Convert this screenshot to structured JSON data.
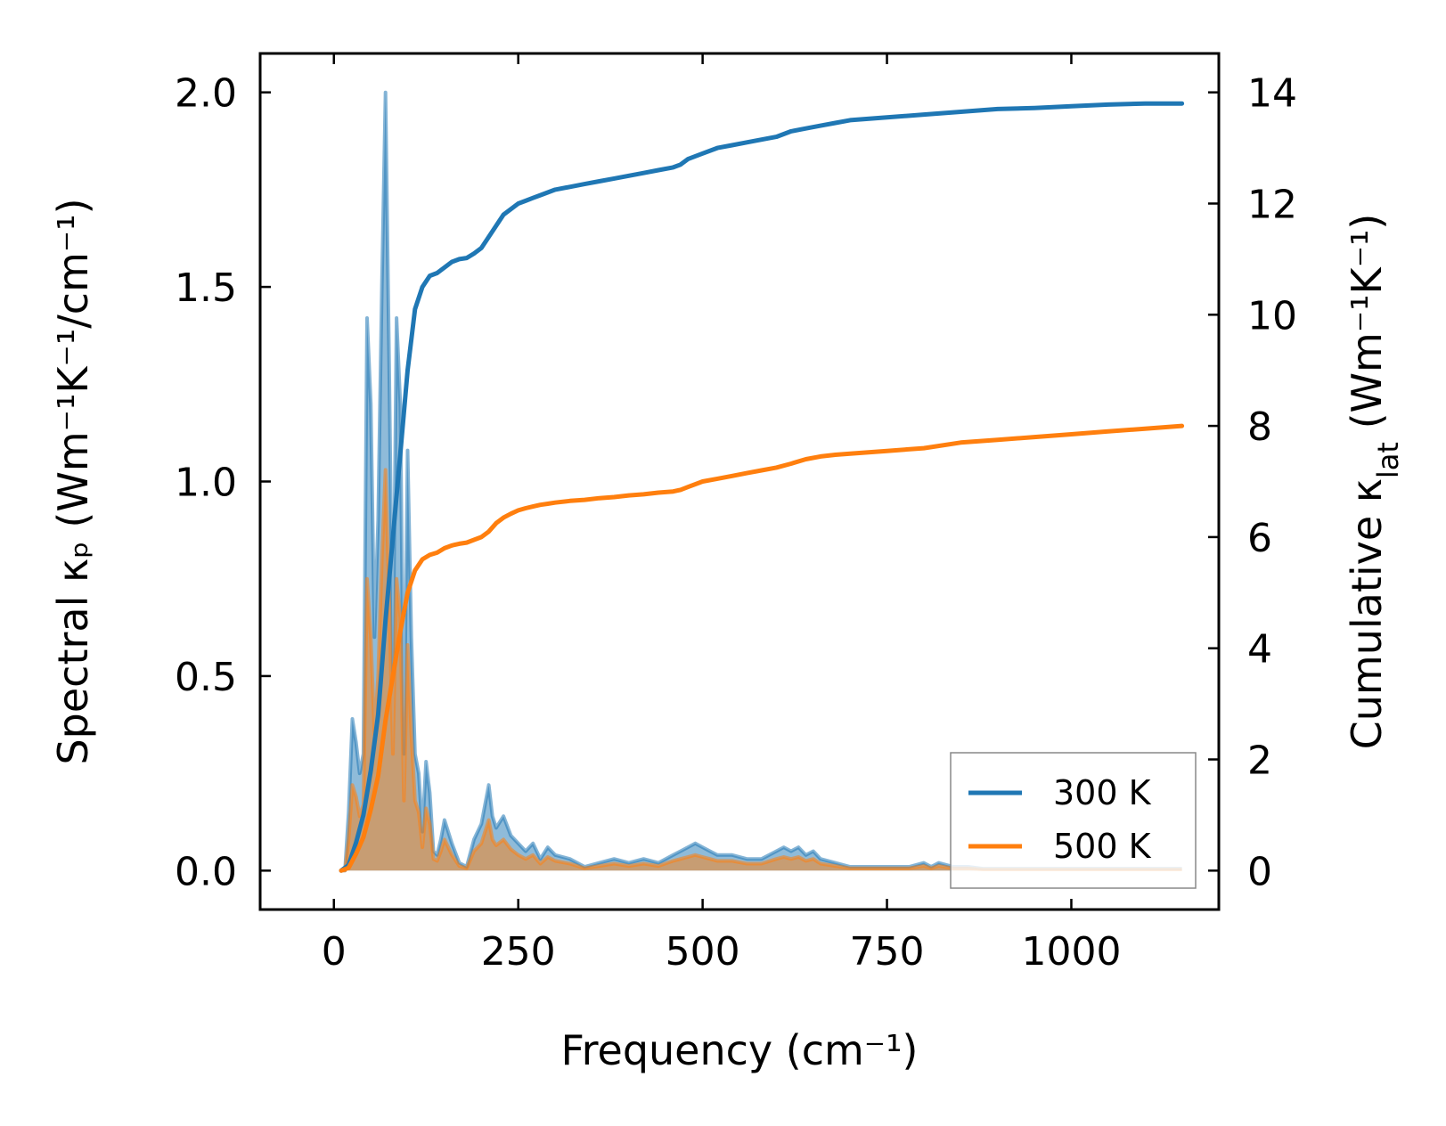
{
  "chart_data": {
    "type": "line",
    "xlabel": "Frequency (cm⁻¹)",
    "ylabel": "Spectral κₚ (Wm⁻¹K⁻¹/cm⁻¹)",
    "y2label": "Cumulative κ_lat (Wm⁻¹K⁻¹)",
    "xlim": [
      -100,
      1200
    ],
    "ylim": [
      -0.1,
      2.1
    ],
    "y2lim": [
      -0.7,
      14.7
    ],
    "xticks": [
      0,
      250,
      500,
      750,
      1000
    ],
    "yticks": [
      0.0,
      0.5,
      1.0,
      1.5,
      2.0
    ],
    "y2ticks": [
      0,
      2,
      4,
      6,
      8,
      10,
      12,
      14
    ],
    "legend": {
      "position": "lower-right"
    },
    "series": [
      {
        "name": "300 K",
        "color": "#1f77b4",
        "spectral": {
          "x": [
            10,
            15,
            20,
            25,
            30,
            35,
            40,
            45,
            50,
            55,
            60,
            65,
            70,
            75,
            80,
            85,
            90,
            95,
            100,
            105,
            110,
            115,
            120,
            125,
            130,
            135,
            140,
            145,
            150,
            160,
            170,
            180,
            190,
            200,
            210,
            215,
            220,
            230,
            240,
            250,
            260,
            270,
            280,
            290,
            300,
            320,
            340,
            360,
            380,
            400,
            420,
            440,
            460,
            470,
            480,
            490,
            500,
            510,
            520,
            540,
            560,
            580,
            600,
            610,
            620,
            630,
            640,
            650,
            660,
            680,
            700,
            720,
            740,
            760,
            780,
            800,
            810,
            820,
            840,
            860,
            880,
            900,
            950,
            1000,
            1050,
            1100,
            1150
          ],
          "y": [
            0.0,
            0.0,
            0.15,
            0.39,
            0.33,
            0.25,
            0.3,
            1.42,
            1.2,
            0.6,
            0.9,
            1.5,
            2.0,
            1.3,
            0.5,
            1.42,
            1.2,
            0.3,
            1.08,
            0.6,
            0.3,
            0.25,
            0.1,
            0.28,
            0.2,
            0.05,
            0.04,
            0.08,
            0.13,
            0.07,
            0.02,
            0.01,
            0.08,
            0.12,
            0.22,
            0.14,
            0.11,
            0.14,
            0.09,
            0.07,
            0.05,
            0.07,
            0.03,
            0.06,
            0.04,
            0.03,
            0.01,
            0.02,
            0.03,
            0.02,
            0.03,
            0.02,
            0.04,
            0.05,
            0.06,
            0.07,
            0.06,
            0.05,
            0.04,
            0.04,
            0.03,
            0.03,
            0.05,
            0.06,
            0.05,
            0.06,
            0.04,
            0.05,
            0.03,
            0.02,
            0.01,
            0.01,
            0.01,
            0.01,
            0.01,
            0.02,
            0.01,
            0.02,
            0.01,
            0.01,
            0.005,
            0.005,
            0.005,
            0.005,
            0.005,
            0.005,
            0.005
          ]
        },
        "cumulative": {
          "x": [
            10,
            20,
            30,
            40,
            50,
            60,
            70,
            80,
            90,
            100,
            110,
            120,
            130,
            140,
            150,
            160,
            170,
            180,
            190,
            200,
            210,
            220,
            230,
            240,
            250,
            260,
            270,
            280,
            290,
            300,
            320,
            340,
            360,
            380,
            400,
            420,
            440,
            460,
            470,
            480,
            500,
            520,
            540,
            560,
            580,
            600,
            620,
            640,
            660,
            680,
            700,
            750,
            800,
            850,
            900,
            950,
            1000,
            1050,
            1100,
            1150
          ],
          "y": [
            0.0,
            0.1,
            0.5,
            1.0,
            1.8,
            2.8,
            4.5,
            6.0,
            7.5,
            9.0,
            10.1,
            10.5,
            10.7,
            10.75,
            10.85,
            10.95,
            11.0,
            11.02,
            11.1,
            11.2,
            11.4,
            11.6,
            11.8,
            11.9,
            12.0,
            12.05,
            12.1,
            12.15,
            12.2,
            12.25,
            12.3,
            12.35,
            12.4,
            12.45,
            12.5,
            12.55,
            12.6,
            12.65,
            12.7,
            12.8,
            12.9,
            13.0,
            13.05,
            13.1,
            13.15,
            13.2,
            13.3,
            13.35,
            13.4,
            13.45,
            13.5,
            13.55,
            13.6,
            13.65,
            13.7,
            13.72,
            13.75,
            13.78,
            13.8,
            13.8
          ]
        }
      },
      {
        "name": "500 K",
        "color": "#ff7f0e",
        "spectral": {
          "x": [
            10,
            15,
            20,
            25,
            30,
            35,
            40,
            45,
            50,
            55,
            60,
            65,
            70,
            75,
            80,
            85,
            90,
            95,
            100,
            105,
            110,
            115,
            120,
            125,
            130,
            135,
            140,
            145,
            150,
            160,
            170,
            180,
            190,
            200,
            210,
            215,
            220,
            230,
            240,
            250,
            260,
            270,
            280,
            290,
            300,
            320,
            340,
            360,
            380,
            400,
            420,
            440,
            460,
            470,
            480,
            490,
            500,
            510,
            520,
            540,
            560,
            580,
            600,
            610,
            620,
            630,
            640,
            650,
            660,
            680,
            700,
            720,
            740,
            760,
            780,
            800,
            810,
            820,
            840,
            860,
            880,
            900,
            950,
            1000,
            1050,
            1100,
            1150
          ],
          "y": [
            0.0,
            0.0,
            0.08,
            0.22,
            0.19,
            0.14,
            0.17,
            0.75,
            0.6,
            0.35,
            0.5,
            0.8,
            1.03,
            0.7,
            0.3,
            0.75,
            0.65,
            0.18,
            0.58,
            0.35,
            0.18,
            0.15,
            0.06,
            0.16,
            0.12,
            0.03,
            0.025,
            0.05,
            0.08,
            0.04,
            0.012,
            0.006,
            0.05,
            0.07,
            0.13,
            0.08,
            0.065,
            0.08,
            0.055,
            0.04,
            0.03,
            0.04,
            0.018,
            0.035,
            0.025,
            0.018,
            0.006,
            0.012,
            0.018,
            0.012,
            0.018,
            0.012,
            0.025,
            0.03,
            0.035,
            0.04,
            0.035,
            0.03,
            0.025,
            0.025,
            0.018,
            0.018,
            0.03,
            0.035,
            0.03,
            0.035,
            0.025,
            0.03,
            0.018,
            0.012,
            0.006,
            0.006,
            0.006,
            0.006,
            0.006,
            0.012,
            0.006,
            0.012,
            0.006,
            0.006,
            0.003,
            0.003,
            0.003,
            0.003,
            0.003,
            0.003,
            0.003
          ]
        },
        "cumulative": {
          "x": [
            10,
            20,
            30,
            40,
            50,
            60,
            70,
            80,
            90,
            100,
            110,
            120,
            130,
            140,
            150,
            160,
            170,
            180,
            190,
            200,
            210,
            220,
            230,
            240,
            250,
            260,
            270,
            280,
            290,
            300,
            320,
            340,
            360,
            380,
            400,
            420,
            440,
            460,
            470,
            480,
            500,
            520,
            540,
            560,
            580,
            600,
            620,
            640,
            660,
            680,
            700,
            750,
            800,
            850,
            900,
            950,
            1000,
            1050,
            1100,
            1150
          ],
          "y": [
            0.0,
            0.05,
            0.3,
            0.6,
            1.1,
            1.7,
            2.7,
            3.5,
            4.3,
            5.0,
            5.4,
            5.6,
            5.68,
            5.72,
            5.8,
            5.85,
            5.88,
            5.9,
            5.95,
            6.0,
            6.1,
            6.25,
            6.35,
            6.42,
            6.48,
            6.52,
            6.55,
            6.58,
            6.6,
            6.62,
            6.65,
            6.67,
            6.7,
            6.72,
            6.75,
            6.77,
            6.8,
            6.82,
            6.85,
            6.9,
            7.0,
            7.05,
            7.1,
            7.15,
            7.2,
            7.25,
            7.32,
            7.4,
            7.45,
            7.48,
            7.5,
            7.55,
            7.6,
            7.7,
            7.75,
            7.8,
            7.85,
            7.9,
            7.95,
            8.0
          ]
        }
      }
    ]
  }
}
